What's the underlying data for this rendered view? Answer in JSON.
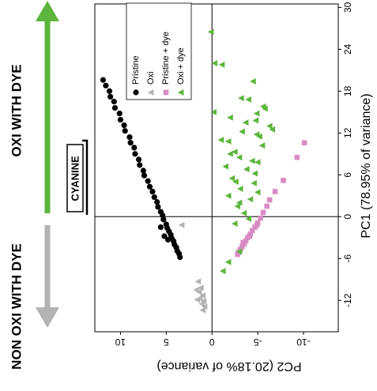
{
  "chart_data": {
    "type": "scatter",
    "xlabel": "PC1 (78.95% of variance)",
    "ylabel": "PC2 (20.18% of variance)",
    "xlim": [
      -16.5,
      30.5
    ],
    "xticks": [
      -12,
      -6,
      0,
      6,
      12,
      18,
      24,
      30
    ],
    "ylim": [
      -13.8,
      12.8
    ],
    "yticks": [
      -10,
      -5,
      0,
      5,
      10
    ],
    "legend": "upper right",
    "annotations": [
      "OXI WITH DYE",
      "NON OXI WITH DYE",
      "CYANINE"
    ],
    "series": [
      {
        "name": "Pristine",
        "color": "#000000",
        "marker": "circle",
        "x": [
          19.6,
          18.8,
          18.0,
          17.2,
          16.5,
          15.6,
          14.8,
          13.9,
          13.1,
          12.3,
          11.4,
          10.6,
          9.9,
          9.0,
          8.2,
          7.4,
          6.6,
          5.9,
          5.1,
          4.3,
          3.6,
          2.8,
          2.1,
          1.4,
          0.7,
          0.2,
          -0.4,
          -1.1,
          -1.6,
          -2.1,
          -2.6,
          -3.1,
          -3.5,
          -4.0,
          -4.4,
          -4.9,
          -5.3,
          -5.8,
          -1.5,
          -2.8,
          -3.3
        ],
        "values": [
          11.9,
          11.6,
          11.2,
          11.1,
          10.7,
          10.6,
          10.1,
          10.0,
          9.6,
          9.5,
          9.0,
          8.9,
          8.5,
          8.4,
          8.0,
          7.9,
          7.5,
          7.4,
          7.0,
          6.8,
          6.5,
          6.3,
          6.0,
          5.9,
          5.6,
          5.4,
          5.3,
          5.0,
          4.9,
          4.7,
          4.5,
          4.4,
          4.2,
          4.1,
          3.9,
          3.8,
          3.6,
          3.5,
          5.6,
          5.2,
          4.8
        ]
      },
      {
        "name": "Oxi",
        "color": "#b3b3b3",
        "marker": "triangle",
        "x": [
          -1.2,
          -9.3,
          -10.2,
          -10.8,
          -11.3,
          -11.7,
          -12.1,
          -12.5,
          -12.9,
          -13.4,
          -10.5,
          -11.9
        ],
        "values": [
          3.3,
          1.5,
          1.2,
          1.4,
          1.0,
          1.3,
          0.9,
          1.1,
          0.8,
          1.0,
          1.7,
          1.6
        ]
      },
      {
        "name": "Pristine + dye",
        "color": "#d98cc4",
        "marker": "square",
        "x": [
          10.6,
          8.5,
          5.2,
          3.6,
          2.4,
          1.5,
          0.6,
          -0.2,
          -0.9,
          -1.5,
          -2.0,
          -2.5,
          -3.0,
          -3.5,
          -3.9,
          -4.3,
          -4.7,
          -5.1,
          -5.4,
          -1.2,
          -2.8,
          -3.7
        ],
        "values": [
          -10.1,
          -9.3,
          -7.8,
          -6.9,
          -6.3,
          -6.0,
          -5.6,
          -5.3,
          -5.0,
          -4.7,
          -4.4,
          -4.2,
          -3.9,
          -3.7,
          -3.5,
          -3.3,
          -3.1,
          -2.9,
          -2.8,
          -4.9,
          -4.1,
          -3.4
        ]
      },
      {
        "name": "Oxi + dye",
        "color": "#5cb53c",
        "marker": "triangle",
        "x": [
          26.5,
          22.0,
          21.8,
          19.4,
          15.0,
          14.2,
          13.8,
          16.8,
          12.2,
          11.5,
          10.8,
          9.3,
          8.5,
          8.0,
          7.2,
          6.8,
          5.5,
          4.8,
          4.0,
          3.5,
          2.5,
          1.5,
          0.5,
          -0.3,
          15.5,
          13.0,
          11.8,
          10.2,
          9.0,
          7.8,
          6.2,
          5.0,
          3.0,
          2.0,
          -1.0,
          -5.0,
          -6.5,
          -7.8,
          14.8,
          13.5,
          12.5,
          11.0,
          17.0,
          15.8
        ],
        "values": [
          0.1,
          -0.3,
          -1.1,
          -4.5,
          -0.2,
          -2.0,
          -4.8,
          -4.0,
          -3.3,
          -5.2,
          -1.8,
          -2.5,
          -3.0,
          -4.4,
          -1.5,
          -3.8,
          -2.2,
          -4.6,
          -3.1,
          -5.0,
          -4.2,
          -2.8,
          -3.5,
          -4.0,
          -5.8,
          -6.3,
          -4.9,
          -5.5,
          -2.0,
          -5.0,
          -4.7,
          -2.6,
          -1.8,
          -3.0,
          -2.5,
          -3.0,
          -1.8,
          -1.2,
          -4.9,
          -3.7,
          -6.6,
          -1.0,
          -3.2,
          -5.6
        ]
      }
    ]
  }
}
